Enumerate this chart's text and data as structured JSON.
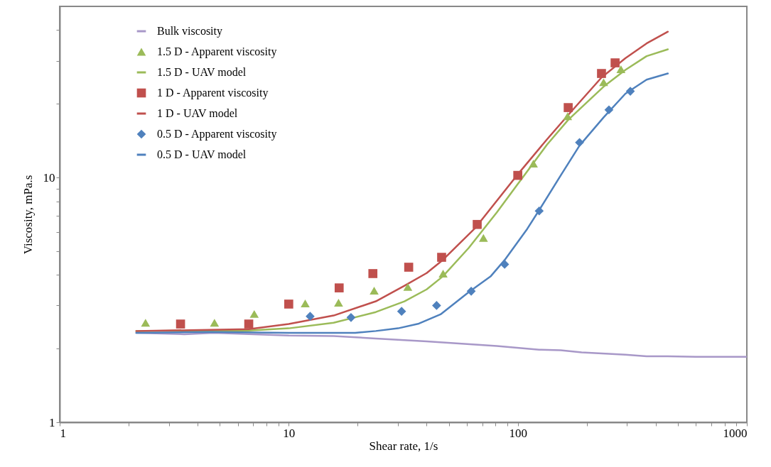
{
  "chart_data": {
    "type": "line",
    "xlabel": "Shear rate, 1/s",
    "ylabel": "Viscosity, mPa.s",
    "log": "xy",
    "grid": false,
    "legend": "top left",
    "xlim": [
      1,
      1000
    ],
    "ylim": [
      1,
      50
    ],
    "xticks": [
      1,
      {
        "value": 2,
        "label": null
      },
      {
        "value": 3,
        "label": null
      },
      {
        "value": 4,
        "label": null
      },
      {
        "value": 5,
        "label": null
      },
      {
        "value": 6,
        "label": null
      },
      {
        "value": 7,
        "label": null
      },
      {
        "value": 8,
        "label": null
      },
      {
        "value": 9,
        "label": null
      },
      10,
      {
        "value": 20,
        "label": null
      },
      {
        "value": 30,
        "label": null
      },
      {
        "value": 40,
        "label": null
      },
      {
        "value": 50,
        "label": null
      },
      {
        "value": 60,
        "label": null
      },
      {
        "value": 70,
        "label": null
      },
      {
        "value": 80,
        "label": null
      },
      {
        "value": 90,
        "label": null
      },
      100,
      {
        "value": 200,
        "label": null
      },
      {
        "value": 300,
        "label": null
      },
      {
        "value": 400,
        "label": null
      },
      {
        "value": 500,
        "label": null
      },
      {
        "value": 600,
        "label": null
      },
      {
        "value": 700,
        "label": null
      },
      {
        "value": 800,
        "label": null
      },
      {
        "value": 900,
        "label": null
      },
      1000
    ],
    "yticks": [
      1,
      {
        "value": 2,
        "label": null
      },
      {
        "value": 3,
        "label": null
      },
      {
        "value": 4,
        "label": null
      },
      {
        "value": 5,
        "label": null
      },
      {
        "value": 6,
        "label": null
      },
      {
        "value": 7,
        "label": null
      },
      {
        "value": 8,
        "label": null
      },
      {
        "value": 9,
        "label": null
      },
      10,
      {
        "value": 20,
        "label": null
      },
      {
        "value": 30,
        "label": null
      },
      {
        "value": 40,
        "label": null
      }
    ],
    "series": [
      {
        "name": "Bulk viscosity",
        "color": "#a898c8",
        "x": [
          2.16,
          3.5,
          4.7,
          10,
          15.7,
          24,
          40,
          81,
          124,
          154,
          190,
          295,
          365,
          452,
          600,
          1000
        ],
        "values": [
          2.32,
          2.29,
          2.32,
          2.26,
          2.25,
          2.2,
          2.14,
          2.05,
          1.98,
          1.97,
          1.93,
          1.89,
          1.86,
          1.86,
          1.85,
          1.85
        ]
      },
      {
        "name": "1.5 D - Apparent viscosity",
        "type": "scatter",
        "marker": "triangle",
        "color": "#9bbb59",
        "x": [
          2.37,
          4.74,
          7.07,
          11.8,
          16.5,
          23.6,
          33.1,
          47.2,
          70.8,
          117,
          165,
          237,
          282
        ],
        "values": [
          2.55,
          2.55,
          2.77,
          3.06,
          3.08,
          3.45,
          3.57,
          4.05,
          5.66,
          11.4,
          17.8,
          24.5,
          27.7
        ]
      },
      {
        "name": "1.5 D - UAV model",
        "color": "#9bbb59",
        "x": [
          2.16,
          6.7,
          10,
          15.7,
          24,
          32,
          40,
          47,
          61,
          81,
          100,
          134,
          166,
          237,
          295,
          365,
          452
        ],
        "values": [
          2.36,
          2.37,
          2.42,
          2.55,
          2.82,
          3.12,
          3.49,
          3.94,
          5.15,
          7.2,
          9.4,
          13.6,
          17.2,
          23.5,
          27.5,
          31.3,
          33.4
        ]
      },
      {
        "name": "1 D - Apparent viscosity",
        "type": "scatter",
        "marker": "square",
        "color": "#c0504d",
        "x": [
          3.37,
          6.69,
          10,
          16.6,
          23.3,
          33.4,
          46.5,
          66.5,
          100,
          166,
          232,
          266
        ],
        "values": [
          2.52,
          2.52,
          3.04,
          3.54,
          4.05,
          4.3,
          4.72,
          6.43,
          10.2,
          19.3,
          26.6,
          29.4
        ]
      },
      {
        "name": "1 D - UAV model",
        "color": "#c0504d",
        "x": [
          2.16,
          6.7,
          10,
          15.7,
          24,
          32,
          40,
          47,
          65,
          100,
          134,
          166,
          232,
          295,
          365,
          452
        ],
        "values": [
          2.36,
          2.4,
          2.52,
          2.73,
          3.12,
          3.61,
          4.07,
          4.6,
          6.2,
          10.3,
          14.3,
          18.0,
          25.6,
          30.7,
          35.3,
          39.4
        ]
      },
      {
        "name": "0.5 D - Apparent viscosity",
        "type": "scatter",
        "marker": "diamond",
        "color": "#4f81bd",
        "x": [
          12.4,
          18.7,
          31.1,
          44.2,
          62.6,
          87.6,
          124,
          186,
          250,
          310
        ],
        "values": [
          2.71,
          2.68,
          2.84,
          3.0,
          3.43,
          4.42,
          7.3,
          13.9,
          18.9,
          22.5
        ]
      },
      {
        "name": "0.5 D - UAV model",
        "color": "#4f81bd",
        "x": [
          2.16,
          4.5,
          10,
          19.5,
          24,
          30,
          37,
          46,
          61,
          76,
          87.6,
          110,
          124,
          154,
          186,
          237,
          295,
          365,
          452
        ],
        "values": [
          2.32,
          2.34,
          2.32,
          2.32,
          2.36,
          2.42,
          2.53,
          2.76,
          3.4,
          3.94,
          4.6,
          6.17,
          7.36,
          10.2,
          13.5,
          17.6,
          22.0,
          25.1,
          26.6
        ]
      }
    ]
  }
}
